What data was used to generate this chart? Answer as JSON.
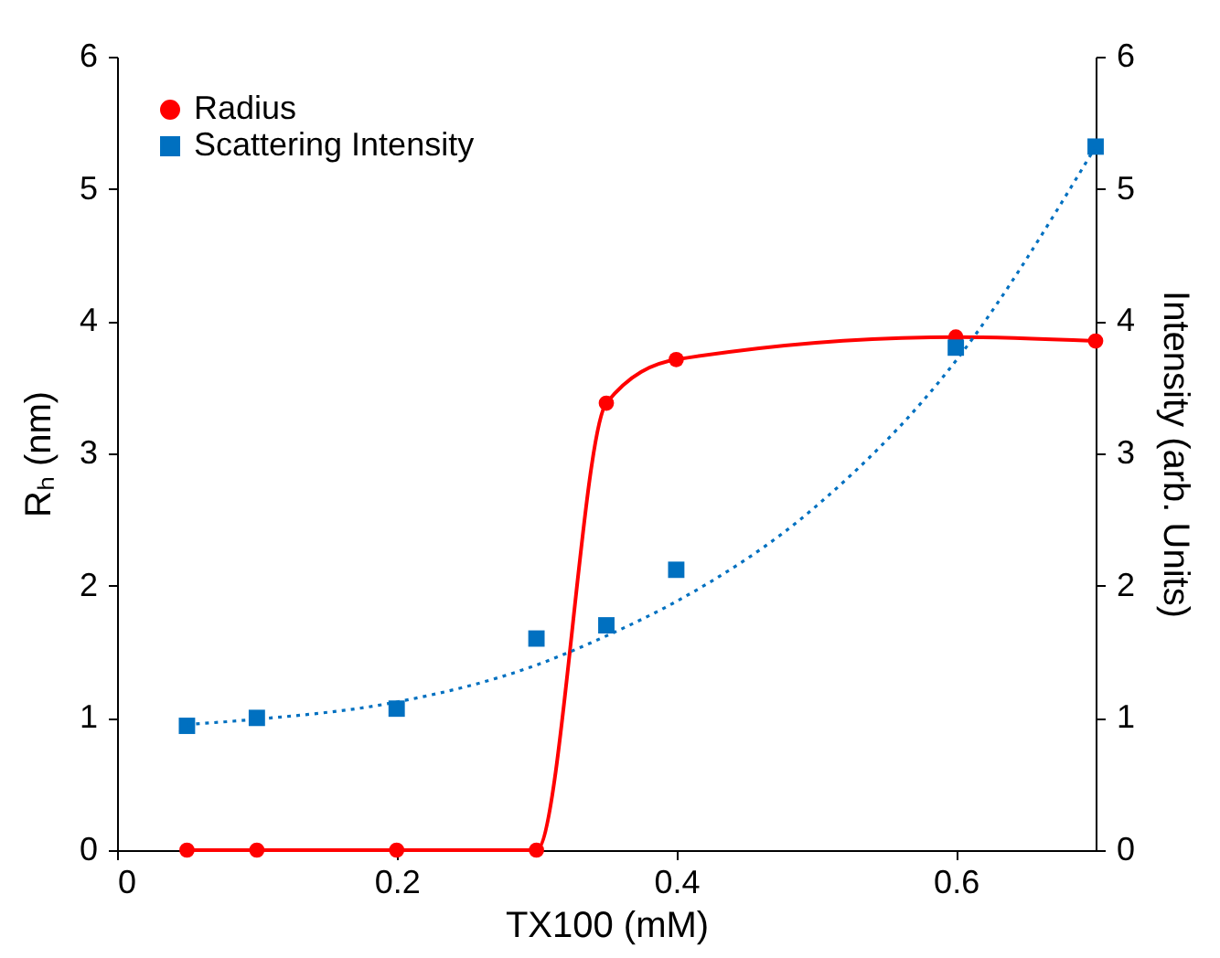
{
  "chart_data": {
    "type": "line",
    "xlabel": "TX100 (mM)",
    "ylabel": "Rₕ  (nm)",
    "y2label": "Intensity (arb. Units)",
    "xlim": [
      0,
      0.7
    ],
    "xticks": [
      0,
      0.2,
      0.4,
      0.6
    ],
    "ylim": [
      0,
      6
    ],
    "yticks": [
      0,
      1,
      2,
      3,
      4,
      5,
      6
    ],
    "y2lim": [
      0,
      6
    ],
    "y2ticks": [
      0,
      1,
      2,
      3,
      4,
      5,
      6
    ],
    "grid": false,
    "legend": "top left",
    "series": [
      {
        "name": "Radius",
        "marker": "circle",
        "color": "#ff0000",
        "x": [
          0.05,
          0.1,
          0.2,
          0.3,
          0.35,
          0.4,
          0.6,
          0.7
        ],
        "values": [
          0,
          0,
          0,
          0,
          3.38,
          3.71,
          3.88,
          3.85
        ]
      },
      {
        "name": "Scattering Intensity",
        "type": "scatter",
        "marker": "square",
        "axis": "y2",
        "color": "#0070c0",
        "x": [
          0.05,
          0.1,
          0.2,
          0.3,
          0.35,
          0.4,
          0.6,
          0.7
        ],
        "values": [
          0.94,
          1.0,
          1.07,
          1.6,
          1.7,
          2.12,
          3.8,
          5.32
        ]
      },
      {
        "type": "line",
        "marker": "none",
        "line_style": "dotted",
        "axis": "y2",
        "color": "#0070c0",
        "x": [
          0.05,
          0.1,
          0.2,
          0.3,
          0.35,
          0.4,
          0.5,
          0.6,
          0.7
        ],
        "values": [
          0.95,
          0.99,
          1.12,
          1.4,
          1.62,
          1.88,
          2.6,
          3.7,
          5.32
        ]
      }
    ]
  }
}
